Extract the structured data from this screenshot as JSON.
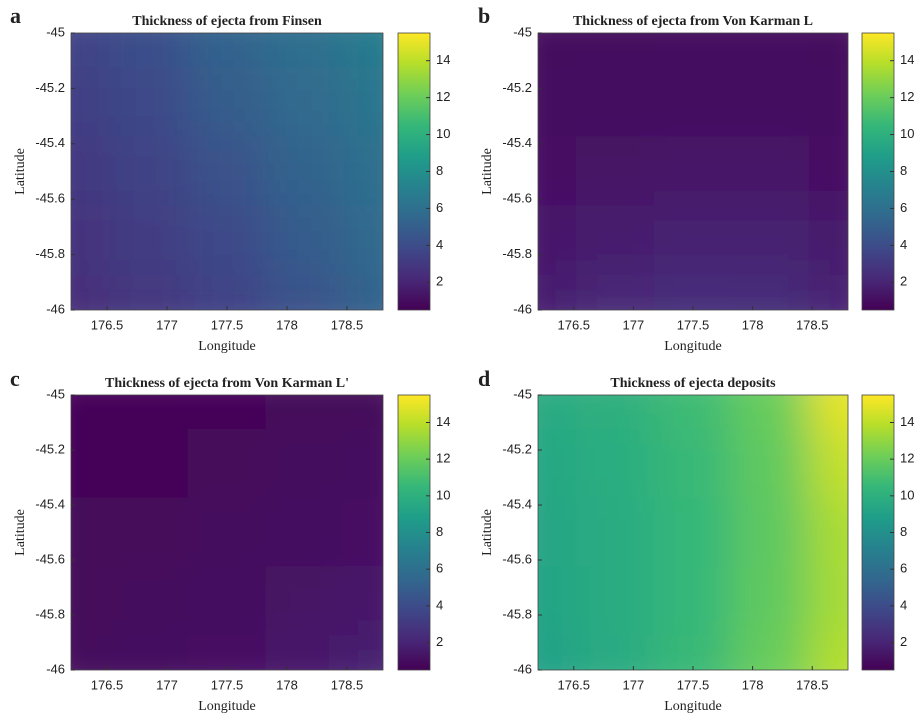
{
  "chart_data": [
    {
      "type": "heatmap",
      "panel": "a",
      "title": "Thickness of ejecta from Finsen",
      "xlabel": "Longitude",
      "ylabel": "Latitude",
      "x": [
        176.2,
        176.85,
        177.5,
        178.15,
        178.8
      ],
      "y": [
        -45,
        -45.25,
        -45.5,
        -45.75,
        -46
      ],
      "z": [
        [
          3.6,
          4.2,
          5.3,
          6.0,
          6.8
        ],
        [
          3.3,
          3.8,
          4.9,
          5.7,
          6.4
        ],
        [
          3.0,
          3.5,
          4.3,
          5.3,
          6.0
        ],
        [
          2.7,
          3.2,
          3.8,
          4.8,
          5.6
        ],
        [
          2.4,
          2.9,
          3.5,
          4.3,
          5.3
        ]
      ],
      "xlim": [
        176.2,
        178.8
      ],
      "ylim": [
        -46,
        -45
      ],
      "xticks": [
        176.5,
        177,
        177.5,
        178,
        178.5
      ],
      "yticks": [
        -45,
        -45.2,
        -45.4,
        -45.6,
        -45.8,
        -46
      ],
      "clim": [
        0.5,
        15.5
      ],
      "cticks": [
        2,
        4,
        6,
        8,
        10,
        12,
        14
      ],
      "colormap": [
        "#440154",
        "#482878",
        "#3e4989",
        "#31688e",
        "#26828e",
        "#1f9e89",
        "#35b779",
        "#6ece58",
        "#b5de2b",
        "#fde725"
      ]
    },
    {
      "type": "heatmap",
      "panel": "b",
      "title": "Thickness of ejecta from Von Karman L",
      "xlabel": "Longitude",
      "ylabel": "Latitude",
      "x": [
        176.2,
        176.85,
        177.5,
        178.15,
        178.8
      ],
      "y": [
        -45,
        -45.25,
        -45.5,
        -45.75,
        -46
      ],
      "z": [
        [
          0.9,
          0.9,
          1.0,
          1.0,
          0.9
        ],
        [
          1.0,
          1.1,
          1.1,
          1.1,
          1.0
        ],
        [
          1.2,
          1.3,
          1.4,
          1.4,
          1.2
        ],
        [
          1.5,
          1.7,
          1.9,
          1.9,
          1.6
        ],
        [
          1.8,
          2.2,
          2.5,
          2.4,
          2.0
        ]
      ],
      "xlim": [
        176.2,
        178.8
      ],
      "ylim": [
        -46,
        -45
      ],
      "xticks": [
        176.5,
        177,
        177.5,
        178,
        178.5
      ],
      "yticks": [
        -45,
        -45.2,
        -45.4,
        -45.6,
        -45.8,
        -46
      ],
      "clim": [
        0.5,
        15.5
      ],
      "cticks": [
        2,
        4,
        6,
        8,
        10,
        12,
        14
      ],
      "colormap": [
        "#440154",
        "#482878",
        "#3e4989",
        "#31688e",
        "#26828e",
        "#1f9e89",
        "#35b779",
        "#6ece58",
        "#b5de2b",
        "#fde725"
      ]
    },
    {
      "type": "heatmap",
      "panel": "c",
      "title": "Thickness of ejecta from Von Karman L'",
      "xlabel": "Longitude",
      "ylabel": "Latitude",
      "x": [
        176.2,
        176.85,
        177.5,
        178.15,
        178.8
      ],
      "y": [
        -45,
        -45.25,
        -45.5,
        -45.75,
        -46
      ],
      "z": [
        [
          0.7,
          0.7,
          0.7,
          0.8,
          0.8
        ],
        [
          0.7,
          0.7,
          0.8,
          0.9,
          1.0
        ],
        [
          0.8,
          0.8,
          0.9,
          1.0,
          1.2
        ],
        [
          0.8,
          0.9,
          1.0,
          1.3,
          1.5
        ],
        [
          0.9,
          1.0,
          1.2,
          1.5,
          1.9
        ]
      ],
      "xlim": [
        176.2,
        178.8
      ],
      "ylim": [
        -46,
        -45
      ],
      "xticks": [
        176.5,
        177,
        177.5,
        178,
        178.5
      ],
      "yticks": [
        -45,
        -45.2,
        -45.4,
        -45.6,
        -45.8,
        -46
      ],
      "clim": [
        0.5,
        15.5
      ],
      "cticks": [
        2,
        4,
        6,
        8,
        10,
        12,
        14
      ],
      "colormap": [
        "#440154",
        "#482878",
        "#3e4989",
        "#31688e",
        "#26828e",
        "#1f9e89",
        "#35b779",
        "#6ece58",
        "#b5de2b",
        "#fde725"
      ]
    },
    {
      "type": "heatmap",
      "panel": "d",
      "title": "Thickness of ejecta deposits",
      "xlabel": "Longitude",
      "ylabel": "Latitude",
      "x": [
        176.2,
        176.85,
        177.5,
        178.15,
        178.8
      ],
      "y": [
        -45,
        -45.25,
        -45.5,
        -45.75,
        -46
      ],
      "z": [
        [
          9.6,
          10.0,
          10.8,
          12.0,
          15.0
        ],
        [
          9.4,
          9.8,
          10.6,
          11.8,
          14.2
        ],
        [
          9.3,
          9.7,
          10.5,
          11.7,
          13.6
        ],
        [
          9.2,
          9.7,
          10.5,
          11.8,
          13.5
        ],
        [
          9.0,
          9.6,
          10.6,
          12.0,
          13.8
        ]
      ],
      "xlim": [
        176.2,
        178.8
      ],
      "ylim": [
        -46,
        -45
      ],
      "xticks": [
        176.5,
        177,
        177.5,
        178,
        178.5
      ],
      "yticks": [
        -45,
        -45.2,
        -45.4,
        -45.6,
        -45.8,
        -46
      ],
      "clim": [
        0.5,
        15.5
      ],
      "cticks": [
        2,
        4,
        6,
        8,
        10,
        12,
        14
      ],
      "colormap": [
        "#440154",
        "#482878",
        "#3e4989",
        "#31688e",
        "#26828e",
        "#1f9e89",
        "#35b779",
        "#6ece58",
        "#b5de2b",
        "#fde725"
      ]
    }
  ]
}
